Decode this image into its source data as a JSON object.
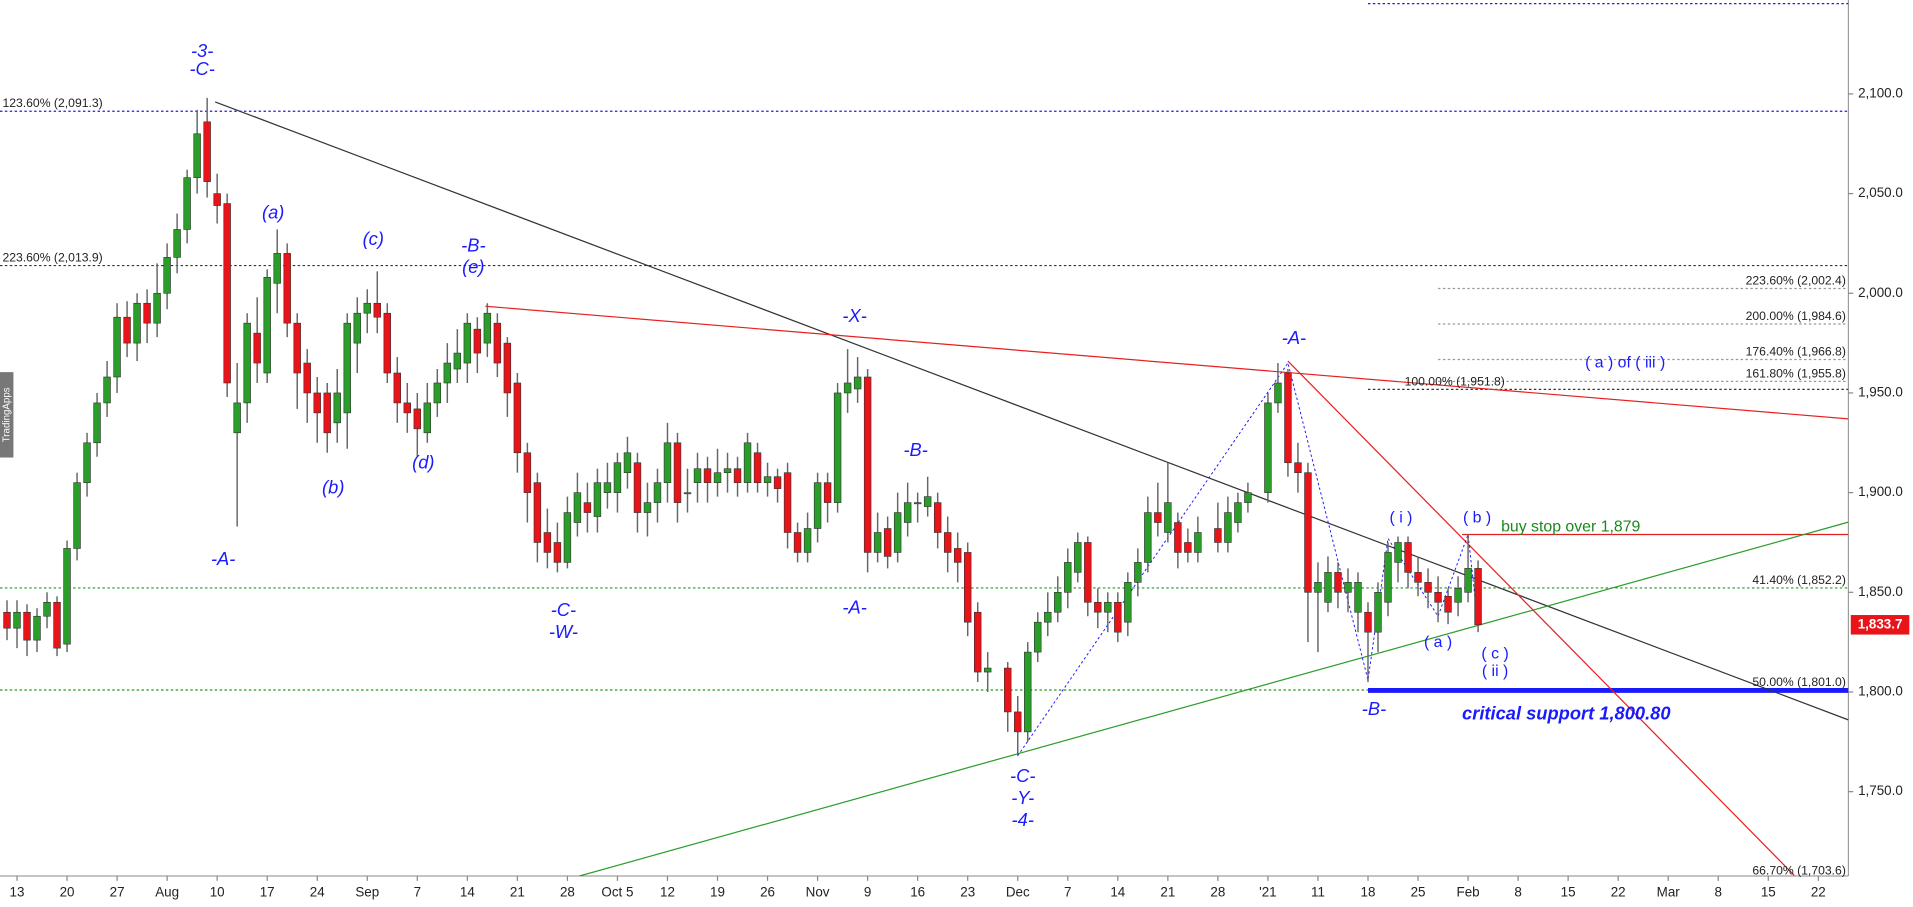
{
  "chart_data": {
    "type": "candlestick",
    "x": [
      -1,
      0,
      1,
      2,
      3,
      4,
      5,
      6,
      7,
      8,
      9,
      10,
      11,
      12,
      13,
      14,
      15,
      16,
      17,
      18,
      19,
      20,
      21,
      22,
      23,
      24,
      25,
      26,
      27,
      28,
      29,
      30,
      31,
      32,
      33,
      34,
      35,
      36,
      37,
      38,
      39,
      40,
      41,
      42,
      43,
      44,
      45,
      46,
      47,
      48,
      49,
      50,
      51,
      52,
      53,
      54,
      55,
      56,
      57,
      58,
      59,
      60,
      61,
      62,
      63,
      64,
      65,
      66,
      67,
      68,
      69,
      70,
      71,
      72,
      73,
      74,
      75,
      76,
      77,
      78,
      79,
      80,
      81,
      82,
      83,
      84,
      85,
      86,
      87,
      88,
      89,
      90,
      91,
      92,
      93,
      94,
      95,
      96,
      97,
      99,
      100,
      101,
      102,
      103,
      104,
      105,
      106,
      107,
      108,
      109,
      110,
      111,
      112,
      113,
      114,
      115,
      116,
      117,
      118,
      120,
      121,
      122,
      123,
      125,
      126,
      127,
      128,
      129,
      130,
      131,
      132,
      133,
      134,
      135,
      136,
      137,
      138,
      139,
      140,
      141,
      142,
      143,
      144,
      145,
      146
    ],
    "open": [
      1840,
      1832,
      1840,
      1826,
      1838,
      1845,
      1824,
      1872,
      1905,
      1925,
      1945,
      1958,
      1988,
      1975,
      1995,
      1985,
      2000,
      2018,
      2032,
      2058,
      2086,
      2050,
      2045,
      1930,
      1945,
      1980,
      1960,
      2005,
      2020,
      1985,
      1965,
      1950,
      1950,
      1935,
      1940,
      1975,
      1990,
      1995,
      1990,
      1960,
      1945,
      1942,
      1930,
      1945,
      1955,
      1962,
      1965,
      1982,
      1975,
      1985,
      1975,
      1955,
      1920,
      1905,
      1880,
      1875,
      1865,
      1885,
      1895,
      1888,
      1900,
      1900,
      1910,
      1915,
      1890,
      1895,
      1905,
      1925,
      1900,
      1905,
      1912,
      1905,
      1910,
      1912,
      1905,
      1920,
      1905,
      1908,
      1910,
      1880,
      1870,
      1882,
      1905,
      1895,
      1950,
      1952,
      1958,
      1870,
      1882,
      1870,
      1885,
      1895,
      1893,
      1895,
      1880,
      1872,
      1870,
      1840,
      1810,
      1812,
      1790,
      1780,
      1820,
      1835,
      1840,
      1850,
      1860,
      1875,
      1845,
      1840,
      1845,
      1835,
      1855,
      1865,
      1890,
      1880,
      1885,
      1875,
      1870,
      1882,
      1875,
      1885,
      1895,
      1900,
      1945,
      1960,
      1915,
      1910,
      1850,
      1845,
      1860,
      1850,
      1840,
      1840,
      1830,
      1845,
      1865,
      1875,
      1860,
      1855,
      1850,
      1848,
      1845,
      1850,
      1862
    ],
    "high": [
      1846,
      1846,
      1844,
      1842,
      1850,
      1848,
      1876,
      1910,
      1930,
      1950,
      1966,
      1995,
      1996,
      2000,
      2002,
      2015,
      2025,
      2040,
      2062,
      2092,
      2098,
      2060,
      2050,
      1965,
      1990,
      1998,
      2012,
      2032,
      2025,
      1990,
      1972,
      1958,
      1955,
      1962,
      1990,
      1998,
      2002,
      2011,
      1995,
      1968,
      1955,
      1950,
      1955,
      1962,
      1975,
      1982,
      1990,
      1988,
      1995,
      1990,
      1978,
      1960,
      1925,
      1910,
      1892,
      1885,
      1898,
      1910,
      1905,
      1912,
      1915,
      1920,
      1928,
      1920,
      1905,
      1912,
      1935,
      1930,
      1912,
      1920,
      1918,
      1922,
      1920,
      1918,
      1930,
      1925,
      1915,
      1912,
      1915,
      1885,
      1890,
      1910,
      1910,
      1955,
      1972,
      1968,
      1962,
      1890,
      1888,
      1900,
      1905,
      1900,
      1908,
      1900,
      1888,
      1880,
      1875,
      1845,
      1820,
      1815,
      1798,
      1825,
      1840,
      1850,
      1858,
      1872,
      1880,
      1878,
      1852,
      1850,
      1850,
      1860,
      1872,
      1898,
      1905,
      1915,
      1890,
      1882,
      1888,
      1895,
      1898,
      1900,
      1905,
      1950,
      1965,
      1962,
      1925,
      1915,
      1865,
      1868,
      1865,
      1862,
      1860,
      1845,
      1855,
      1875,
      1878,
      1878,
      1868,
      1862,
      1858,
      1852,
      1858,
      1879,
      1866
    ],
    "low": [
      1826,
      1822,
      1818,
      1820,
      1832,
      1818,
      1820,
      1866,
      1898,
      1918,
      1938,
      1950,
      1968,
      1966,
      1975,
      1978,
      1992,
      2010,
      2025,
      2050,
      2048,
      2035,
      1948,
      1883,
      1935,
      1955,
      1955,
      1990,
      1978,
      1942,
      1935,
      1925,
      1920,
      1925,
      1922,
      1960,
      1980,
      1980,
      1955,
      1935,
      1930,
      1918,
      1925,
      1938,
      1945,
      1955,
      1955,
      1960,
      1968,
      1958,
      1938,
      1910,
      1885,
      1865,
      1862,
      1860,
      1862,
      1878,
      1880,
      1880,
      1892,
      1890,
      1902,
      1880,
      1878,
      1885,
      1895,
      1885,
      1890,
      1895,
      1895,
      1898,
      1900,
      1898,
      1900,
      1900,
      1898,
      1895,
      1872,
      1865,
      1865,
      1875,
      1885,
      1890,
      1940,
      1945,
      1860,
      1865,
      1862,
      1865,
      1878,
      1885,
      1888,
      1872,
      1860,
      1855,
      1828,
      1805,
      1800,
      1780,
      1768,
      1775,
      1815,
      1828,
      1835,
      1842,
      1855,
      1838,
      1832,
      1830,
      1825,
      1828,
      1848,
      1860,
      1878,
      1875,
      1862,
      1865,
      1865,
      1870,
      1870,
      1880,
      1890,
      1895,
      1940,
      1908,
      1900,
      1825,
      1820,
      1840,
      1842,
      1840,
      1830,
      1805,
      1820,
      1838,
      1855,
      1852,
      1848,
      1842,
      1835,
      1834,
      1838,
      1845,
      1830
    ],
    "close": [
      1832,
      1840,
      1826,
      1838,
      1845,
      1822,
      1872,
      1905,
      1925,
      1945,
      1958,
      1988,
      1975,
      1995,
      1985,
      2000,
      2018,
      2032,
      2058,
      2080,
      2056,
      2044,
      1955,
      1945,
      1985,
      1965,
      2008,
      2020,
      1985,
      1960,
      1950,
      1940,
      1930,
      1950,
      1985,
      1990,
      1995,
      1988,
      1960,
      1945,
      1940,
      1932,
      1945,
      1955,
      1965,
      1970,
      1985,
      1970,
      1990,
      1965,
      1950,
      1920,
      1900,
      1875,
      1870,
      1865,
      1890,
      1900,
      1890,
      1905,
      1905,
      1915,
      1920,
      1890,
      1895,
      1905,
      1925,
      1895,
      1900,
      1912,
      1905,
      1910,
      1912,
      1905,
      1925,
      1905,
      1908,
      1902,
      1880,
      1870,
      1882,
      1905,
      1895,
      1950,
      1955,
      1958,
      1870,
      1880,
      1868,
      1890,
      1895,
      1895,
      1898,
      1880,
      1870,
      1865,
      1835,
      1810,
      1812,
      1790,
      1780,
      1820,
      1835,
      1840,
      1850,
      1865,
      1875,
      1845,
      1840,
      1845,
      1830,
      1855,
      1865,
      1890,
      1885,
      1895,
      1870,
      1870,
      1880,
      1875,
      1890,
      1895,
      1900,
      1945,
      1955,
      1915,
      1910,
      1850,
      1855,
      1860,
      1850,
      1855,
      1855,
      1830,
      1850,
      1870,
      1875,
      1860,
      1855,
      1850,
      1845,
      1840,
      1852,
      1862,
      1833.7
    ],
    "up_color": "#2a9d2a",
    "down_color": "#e8141a",
    "xlim": [
      -1.7,
      183
    ],
    "ylim": [
      1707.7,
      2147.1
    ],
    "xticks": [
      {
        "value": 0,
        "label": "13"
      },
      {
        "value": 5,
        "label": "20"
      },
      {
        "value": 10,
        "label": "27"
      },
      {
        "value": 15,
        "label": "Aug"
      },
      {
        "value": 20,
        "label": "10"
      },
      {
        "value": 25,
        "label": "17"
      },
      {
        "value": 30,
        "label": "24"
      },
      {
        "value": 35,
        "label": "Sep"
      },
      {
        "value": 40,
        "label": "7"
      },
      {
        "value": 45,
        "label": "14"
      },
      {
        "value": 50,
        "label": "21"
      },
      {
        "value": 55,
        "label": "28"
      },
      {
        "value": 60,
        "label": "Oct 5"
      },
      {
        "value": 65,
        "label": "12"
      },
      {
        "value": 70,
        "label": "19"
      },
      {
        "value": 75,
        "label": "26"
      },
      {
        "value": 80,
        "label": "Nov"
      },
      {
        "value": 85,
        "label": "9"
      },
      {
        "value": 90,
        "label": "16"
      },
      {
        "value": 95,
        "label": "23"
      },
      {
        "value": 100,
        "label": "Dec"
      },
      {
        "value": 105,
        "label": "7"
      },
      {
        "value": 110,
        "label": "14"
      },
      {
        "value": 115,
        "label": "21"
      },
      {
        "value": 120,
        "label": "28"
      },
      {
        "value": 125,
        "label": "'21"
      },
      {
        "value": 130,
        "label": "11"
      },
      {
        "value": 135,
        "label": "18"
      },
      {
        "value": 140,
        "label": "25"
      },
      {
        "value": 145,
        "label": "Feb"
      },
      {
        "value": 150,
        "label": "8"
      },
      {
        "value": 155,
        "label": "15"
      },
      {
        "value": 160,
        "label": "22"
      },
      {
        "value": 165,
        "label": "Mar"
      },
      {
        "value": 170,
        "label": "8"
      },
      {
        "value": 175,
        "label": "15"
      },
      {
        "value": 180,
        "label": "22"
      }
    ],
    "yticks": [
      {
        "value": 1750,
        "label": "1,750.0"
      },
      {
        "value": 1800,
        "label": "1,800.0"
      },
      {
        "value": 1850,
        "label": "1,850.0"
      },
      {
        "value": 1900,
        "label": "1,900.0"
      },
      {
        "value": 1950,
        "label": "1,950.0"
      },
      {
        "value": 2000,
        "label": "2,000.0"
      },
      {
        "value": 2050,
        "label": "2,050.0"
      },
      {
        "value": 2100,
        "label": "2,100.0"
      }
    ],
    "last_price": {
      "value": 1833.7,
      "label": "1,833.7",
      "color": "#e8141a"
    },
    "levels": [
      {
        "value": 2145.3,
        "color": "#1a1aff",
        "style": "dotted",
        "from": 135
      },
      {
        "value": 2091.3,
        "label": "123.60% (2,091.3)",
        "color": "#1a1aff",
        "style": "dotted",
        "label_side": "left"
      },
      {
        "value": 2013.9,
        "label": "223.60% (2,013.9)",
        "color": "#333333",
        "style": "dotted",
        "label_side": "left"
      },
      {
        "value": 2002.4,
        "label": "223.60% (2,002.4)",
        "color": "#999999",
        "style": "dotted",
        "label_side": "right",
        "from": 142
      },
      {
        "value": 1984.6,
        "label": "200.00% (1,984.6)",
        "color": "#999999",
        "style": "dotted",
        "label_side": "right",
        "from": 142
      },
      {
        "value": 1966.8,
        "label": "176.40% (1,966.8)",
        "color": "#999999",
        "style": "dotted",
        "label_side": "right",
        "from": 142
      },
      {
        "value": 1955.8,
        "label": "161.80% (1,955.8)",
        "color": "#999999",
        "style": "dotted",
        "label_side": "right",
        "from": 142
      },
      {
        "value": 1951.8,
        "label": "100.00% (1,951.8)",
        "color": "#333333",
        "style": "dotted",
        "label_side": "start",
        "from": 135
      },
      {
        "value": 1852.2,
        "label": "41.40% (1,852.2)",
        "color": "#1a9a1a",
        "style": "dotted",
        "label_side": "right"
      },
      {
        "value": 1801.0,
        "label": "50.00% (1,801.0)",
        "color": "#1a9a1a",
        "style": "dotted",
        "label_side": "right"
      },
      {
        "value": 1879,
        "color": "#e02020",
        "style": "solid",
        "from": 144.4
      },
      {
        "value": 1800.8,
        "color": "#1a1aff",
        "style": "thick",
        "from": 135
      },
      {
        "value": 1703.6,
        "label": "66.70% (1,703.6)",
        "color": "#1a9a1a",
        "style": "dotted",
        "label_side": "right"
      }
    ],
    "trendlines": [
      {
        "x": [
          19.8,
          183
        ],
        "y": [
          2096,
          1786
        ],
        "color": "#333333"
      },
      {
        "x": [
          46.8,
          183
        ],
        "y": [
          1993.5,
          1937
        ],
        "color": "#e82020"
      },
      {
        "x": [
          56.2,
          183
        ],
        "y": [
          1707.7,
          1885.2
        ],
        "color": "#2a9d2a"
      },
      {
        "x": [
          127,
          177.6
        ],
        "y": [
          1966,
          1708
        ],
        "color": "#e82020"
      }
    ],
    "wave_path": {
      "x": [
        100,
        127,
        135,
        137,
        142,
        145,
        146
      ],
      "y": [
        1768,
        1965,
        1806,
        1877,
        1838,
        1879,
        1833.7
      ],
      "color": "#1a1aff"
    },
    "annotations": [
      {
        "text": "-3-",
        "x": 18.5,
        "y": 2121,
        "style": "wave"
      },
      {
        "text": "-C-",
        "x": 18.5,
        "y": 2112,
        "style": "wave"
      },
      {
        "text": "(a)",
        "x": 25.6,
        "y": 2040,
        "style": "wave"
      },
      {
        "text": "(b)",
        "x": 31.6,
        "y": 1902,
        "style": "wave"
      },
      {
        "text": "(c)",
        "x": 35.6,
        "y": 2026.6,
        "style": "wave"
      },
      {
        "text": "(d)",
        "x": 40.6,
        "y": 1914.6,
        "style": "wave"
      },
      {
        "text": "-B-",
        "x": 45.6,
        "y": 2023.5,
        "style": "wave"
      },
      {
        "text": "(e)",
        "x": 45.6,
        "y": 2012.5,
        "style": "wave"
      },
      {
        "text": "-A-",
        "x": 20.6,
        "y": 1866,
        "style": "wave"
      },
      {
        "text": "-C-",
        "x": 54.6,
        "y": 1840.5,
        "style": "wave"
      },
      {
        "text": "-W-",
        "x": 54.6,
        "y": 1829.5,
        "style": "wave"
      },
      {
        "text": "-X-",
        "x": 83.7,
        "y": 1988,
        "style": "wave"
      },
      {
        "text": "-B-",
        "x": 89.8,
        "y": 1920.7,
        "style": "wave"
      },
      {
        "text": "-A-",
        "x": 83.7,
        "y": 1841.7,
        "style": "wave"
      },
      {
        "text": "-C-",
        "x": 100.5,
        "y": 1757.3,
        "style": "wave"
      },
      {
        "text": "-Y-",
        "x": 100.5,
        "y": 1746.3,
        "style": "wave"
      },
      {
        "text": "-4-",
        "x": 100.5,
        "y": 1735.3,
        "style": "wave"
      },
      {
        "text": "-A-",
        "x": 127.6,
        "y": 1977,
        "style": "wave"
      },
      {
        "text": "( i )",
        "x": 138.3,
        "y": 1887,
        "style": "minor"
      },
      {
        "text": "( b )",
        "x": 145.9,
        "y": 1887,
        "style": "minor"
      },
      {
        "text": "( a )",
        "x": 142,
        "y": 1824.6,
        "style": "minor"
      },
      {
        "text": "( c )",
        "x": 147.7,
        "y": 1819,
        "style": "minor"
      },
      {
        "text": "( ii )",
        "x": 147.7,
        "y": 1810,
        "style": "minor"
      },
      {
        "text": "-B-",
        "x": 135.6,
        "y": 1791,
        "style": "wave"
      },
      {
        "text": "( a ) of ( iii )",
        "x": 160.7,
        "y": 1964.8,
        "style": "minor"
      },
      {
        "text": "buy stop over 1,879",
        "x": 148.3,
        "y": 1882.7,
        "style": "note"
      },
      {
        "text": "critical support 1,800.80",
        "x": 144.4,
        "y": 1788.5,
        "style": "callout"
      }
    ],
    "sidebar": "TradingApps"
  }
}
